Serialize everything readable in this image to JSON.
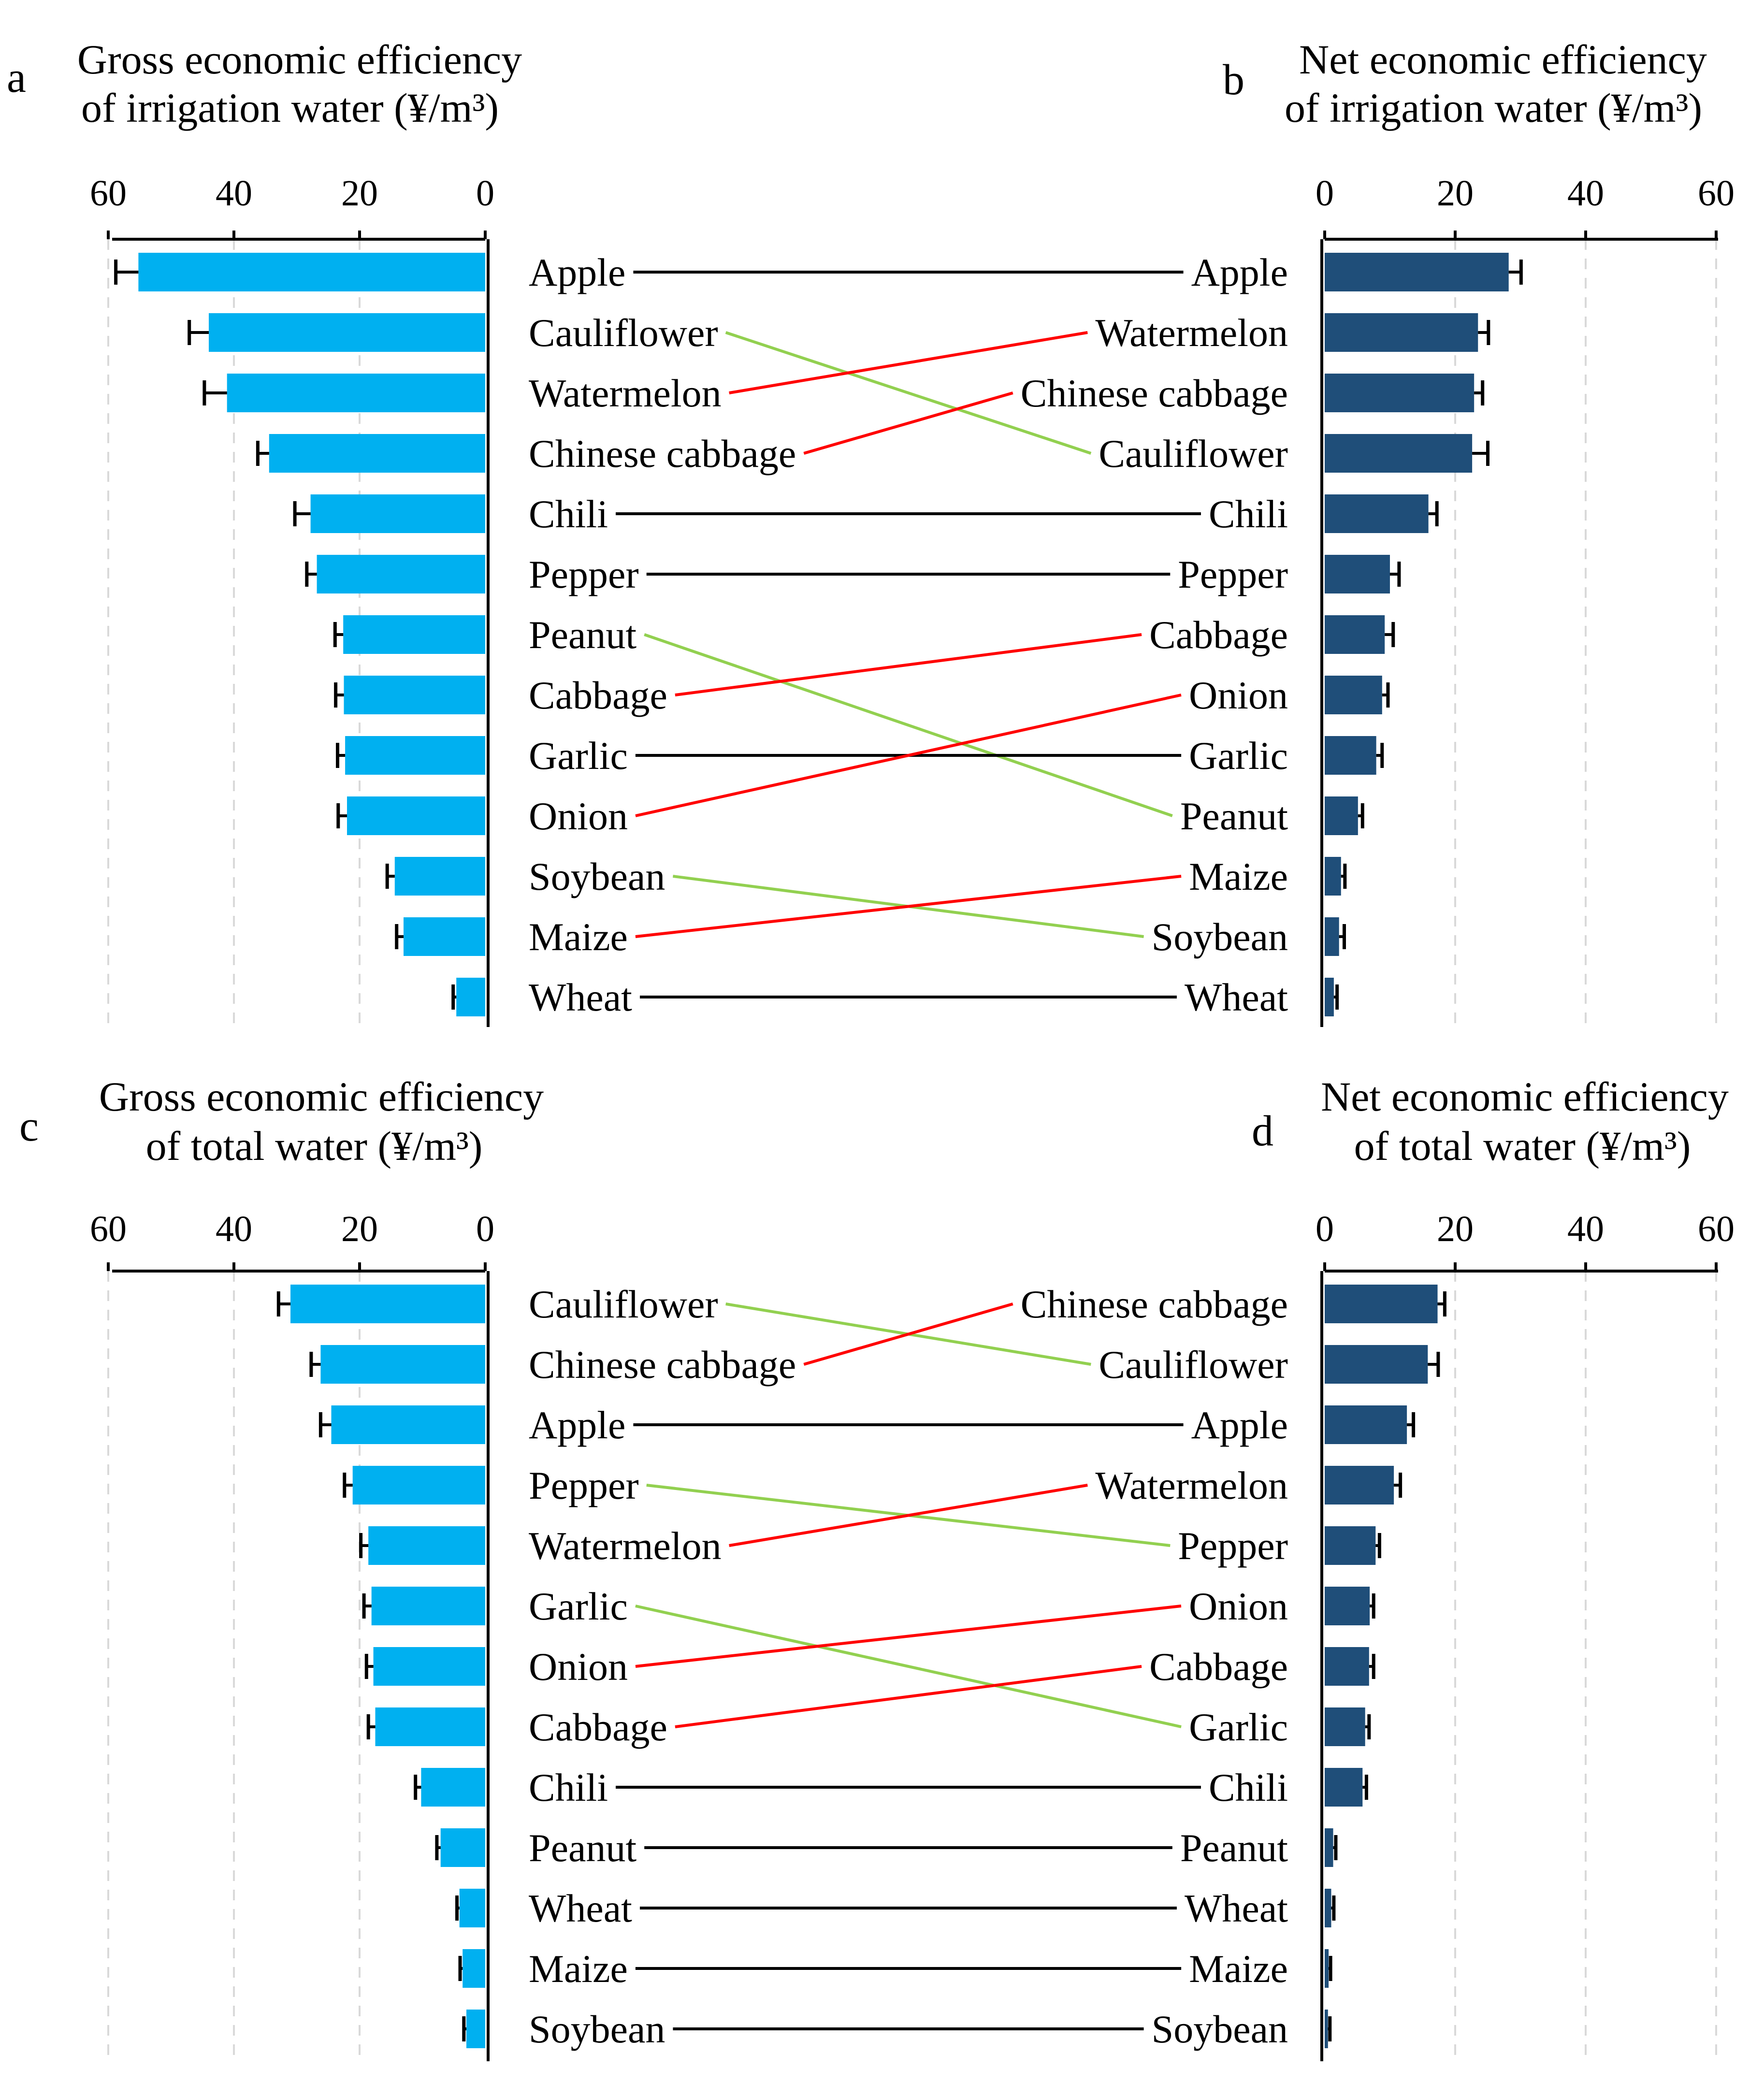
{
  "figure": {
    "colors": {
      "gross_bar": "#00b0f0",
      "net_bar": "#1f4e79",
      "error_bar": "#000000",
      "rank_same": "#000000",
      "rank_up": "#ff0000",
      "rank_down": "#92d050",
      "grid": "#d9d9d9"
    }
  },
  "chart_data": [
    {
      "id": "a",
      "type": "bar",
      "orientation": "horizontal",
      "label": "a",
      "title_line1": "Gross economic  efficiency",
      "title_line2": "of irrigation water (¥/m³)",
      "xlim": [
        0,
        60
      ],
      "ticks": [
        60,
        40,
        20,
        0
      ],
      "direction": "reversed",
      "grid": "dashed vertical",
      "categories": [
        "Apple",
        "Cauliflower",
        "Watermelon",
        "Chinese cabbage",
        "Chili",
        "Pepper",
        "Peanut",
        "Cabbage",
        "Garlic",
        "Onion",
        "Soybean",
        "Maize",
        "Wheat"
      ],
      "values": [
        55.2,
        44.0,
        41.1,
        34.4,
        27.8,
        26.8,
        22.6,
        22.5,
        22.3,
        22.0,
        14.4,
        13.0,
        4.6
      ],
      "errors": [
        3.6,
        3.1,
        3.6,
        1.8,
        2.5,
        1.6,
        1.3,
        1.3,
        1.2,
        1.4,
        1.2,
        1.1,
        0.5
      ]
    },
    {
      "id": "b",
      "type": "bar",
      "orientation": "horizontal",
      "label": "b",
      "title_line1": "Net economic  efficiency",
      "title_line2": "of irrigation water (¥/m³)",
      "xlim": [
        0,
        60
      ],
      "ticks": [
        0,
        20,
        40,
        60
      ],
      "direction": "normal",
      "grid": "dashed vertical",
      "categories": [
        "Apple",
        "Watermelon",
        "Chinese cabbage",
        "Cauliflower",
        "Chili",
        "Pepper",
        "Cabbage",
        "Onion",
        "Garlic",
        "Peanut",
        "Maize",
        "Soybean",
        "Wheat"
      ],
      "values": [
        28.2,
        23.5,
        22.9,
        22.6,
        15.9,
        10.0,
        9.2,
        8.8,
        7.9,
        5.1,
        2.5,
        2.2,
        1.4
      ],
      "errors": [
        1.9,
        1.6,
        1.3,
        2.4,
        1.3,
        1.4,
        1.3,
        0.9,
        0.9,
        0.7,
        0.6,
        0.8,
        0.5
      ]
    },
    {
      "id": "c",
      "type": "bar",
      "orientation": "horizontal",
      "label": "c",
      "title_line1": "Gross economic  efficiency",
      "title_line2": "of total water (¥/m³)",
      "xlim": [
        0,
        60
      ],
      "ticks": [
        60,
        40,
        20,
        0
      ],
      "direction": "reversed",
      "grid": "dashed vertical",
      "categories": [
        "Cauliflower",
        "Chinese cabbage",
        "Apple",
        "Pepper",
        "Watermelon",
        "Garlic",
        "Onion",
        "Cabbage",
        "Chili",
        "Peanut",
        "Wheat",
        "Maize",
        "Soybean"
      ],
      "values": [
        31.0,
        26.2,
        24.5,
        21.1,
        18.6,
        18.1,
        17.8,
        17.5,
        10.2,
        7.1,
        4.1,
        3.6,
        3.0
      ],
      "errors": [
        1.9,
        1.5,
        1.7,
        1.3,
        1.2,
        1.2,
        1.1,
        1.1,
        0.9,
        0.6,
        0.4,
        0.4,
        0.4
      ]
    },
    {
      "id": "d",
      "type": "bar",
      "orientation": "horizontal",
      "label": "d",
      "title_line1": "Net economic efficiency",
      "title_line2": "of total water (¥/m³)",
      "xlim": [
        0,
        60
      ],
      "ticks": [
        0,
        20,
        40,
        60
      ],
      "direction": "normal",
      "grid": "dashed vertical",
      "categories": [
        "Chinese cabbage",
        "Cauliflower",
        "Apple",
        "Watermelon",
        "Pepper",
        "Onion",
        "Cabbage",
        "Garlic",
        "Chili",
        "Peanut",
        "Wheat",
        "Maize",
        "Soybean"
      ],
      "values": [
        17.3,
        15.8,
        12.6,
        10.6,
        7.8,
        6.9,
        6.8,
        6.2,
        5.8,
        1.3,
        1.0,
        0.6,
        0.5
      ],
      "errors": [
        1.1,
        1.6,
        1.0,
        1.0,
        0.6,
        0.6,
        0.7,
        0.6,
        0.6,
        0.4,
        0.4,
        0.3,
        0.3
      ]
    }
  ],
  "connectors": [
    {
      "left": "a",
      "right": "b",
      "note": "rank change: red = rank improves, green = rank falls, black = unchanged"
    },
    {
      "left": "c",
      "right": "d",
      "note": "rank change: red = rank improves, green = rank falls, black = unchanged"
    }
  ]
}
